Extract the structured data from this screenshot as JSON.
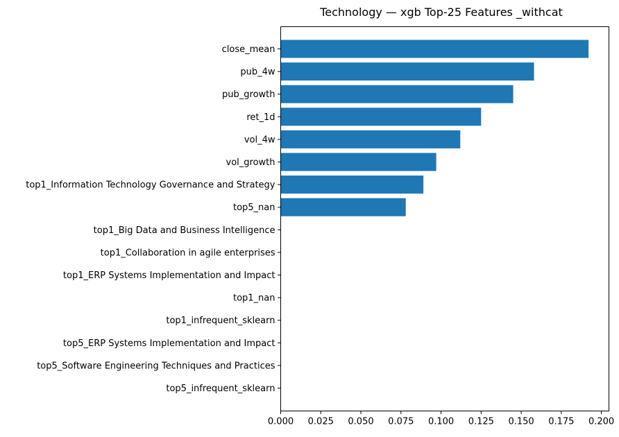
{
  "chart_data": {
    "type": "bar",
    "orientation": "horizontal",
    "title": "Technology — xgb Top-25 Features _withcat",
    "xlabel": "",
    "ylabel": "",
    "xlim": [
      0,
      0.2
    ],
    "xticks": [
      "0.000",
      "0.025",
      "0.050",
      "0.075",
      "0.100",
      "0.125",
      "0.150",
      "0.175",
      "0.200"
    ],
    "categories": [
      "close_mean",
      "pub_4w",
      "pub_growth",
      "ret_1d",
      "vol_4w",
      "vol_growth",
      "top1_Information Technology Governance and Strategy",
      "top5_nan",
      "top1_Big Data and Business Intelligence",
      "top1_Collaboration in agile enterprises",
      "top1_ERP Systems Implementation and Impact",
      "top1_nan",
      "top1_infrequent_sklearn",
      "top5_ERP Systems Implementation and Impact",
      "top5_Software Engineering Techniques and Practices",
      "top5_infrequent_sklearn"
    ],
    "values": [
      0.192,
      0.158,
      0.145,
      0.125,
      0.112,
      0.097,
      0.089,
      0.078,
      0,
      0,
      0,
      0,
      0,
      0,
      0,
      0
    ],
    "bar_color": "#1f77b4",
    "grid": false,
    "legend": "none"
  }
}
